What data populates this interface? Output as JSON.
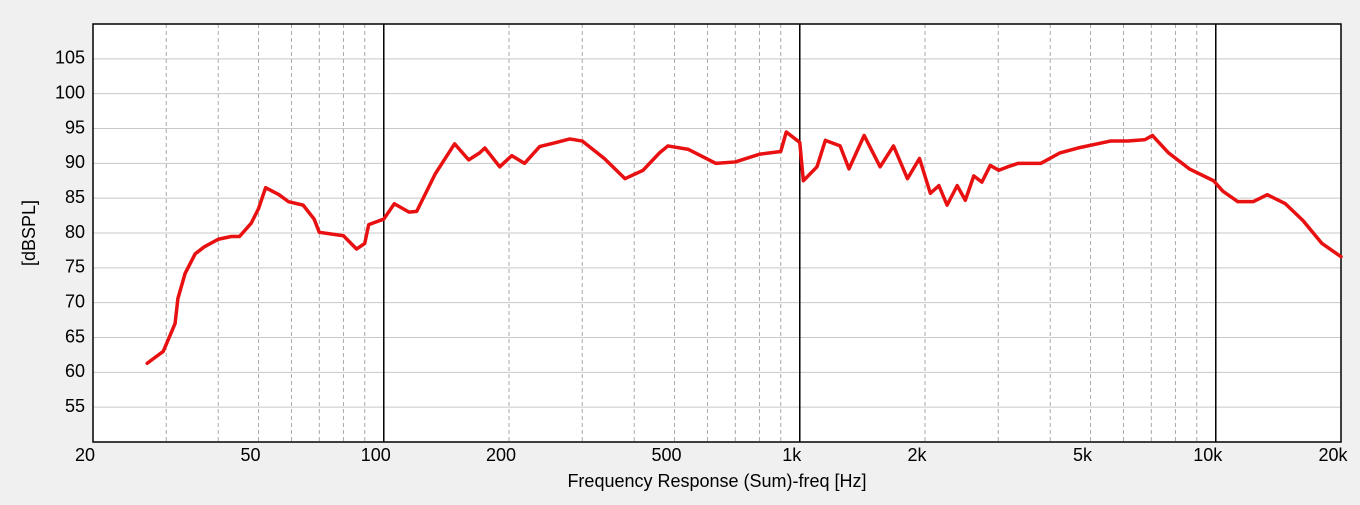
{
  "chart_data": {
    "type": "line",
    "log_x": true,
    "xlabel": "Frequency Response (Sum)-freq [Hz]",
    "ylabel": "[dBSPL]",
    "xlim": [
      20,
      20000
    ],
    "ylim": [
      50,
      110
    ],
    "xticks": [
      20,
      50,
      100,
      200,
      500,
      {
        "value": 1000,
        "label": "1k"
      },
      {
        "value": 2000,
        "label": "2k"
      },
      {
        "value": 5000,
        "label": "5k"
      },
      {
        "value": 10000,
        "label": "10k"
      },
      {
        "value": 20000,
        "label": "20k"
      }
    ],
    "yticks": [
      55,
      60,
      65,
      70,
      75,
      80,
      85,
      90,
      95,
      100,
      105
    ],
    "grid": true,
    "color": "#e81010",
    "x": [
      27,
      28,
      29.5,
      31.5,
      32,
      33.3,
      35.2,
      37,
      40,
      43,
      45,
      48,
      50,
      52,
      56,
      59,
      64,
      68,
      70,
      80,
      86,
      90,
      92,
      100,
      106,
      115,
      120,
      133,
      148,
      160,
      170,
      175,
      190,
      203,
      218,
      237,
      260,
      280,
      300,
      339,
      380,
      420,
      460,
      482,
      540,
      628,
      700,
      799,
      900,
      928,
      1000,
      1020,
      1100,
      1152,
      1250,
      1313,
      1428,
      1560,
      1680,
      1815,
      1940,
      2060,
      2160,
      2260,
      2390,
      2500,
      2620,
      2740,
      2870,
      3010,
      3160,
      3350,
      3800,
      4220,
      4660,
      5580,
      6150,
      6760,
      7040,
      7700,
      8640,
      9880,
      10400,
      11300,
      12300,
      13300,
      14700,
      16200,
      18000,
      20000
    ],
    "values": [
      61.3,
      62,
      63,
      67,
      70.6,
      74.2,
      77,
      78,
      79.1,
      79.5,
      79.5,
      81.4,
      83.5,
      86.5,
      85.5,
      84.5,
      84,
      82,
      80.1,
      79.6,
      77.7,
      78.5,
      81.2,
      82,
      84.2,
      83,
      83.1,
      88.5,
      92.8,
      90.5,
      91.5,
      92.2,
      89.5,
      91.1,
      90,
      92.4,
      93,
      93.5,
      93.2,
      90.7,
      87.8,
      89,
      91.5,
      92.5,
      92,
      90,
      90.2,
      91.3,
      91.7,
      94.5,
      93,
      87.5,
      89.5,
      93.3,
      92.5,
      89.2,
      94,
      89.5,
      92.5,
      87.8,
      90.7,
      85.7,
      86.8,
      84,
      86.8,
      84.7,
      88.2,
      87.3,
      89.7,
      89,
      89.5,
      90,
      90,
      91.5,
      92.2,
      93.2,
      93.2,
      93.4,
      94,
      91.5,
      89.2,
      87.5,
      86,
      84.5,
      84.5,
      85.5,
      84.2,
      81.8,
      78.5,
      76.6
    ]
  }
}
